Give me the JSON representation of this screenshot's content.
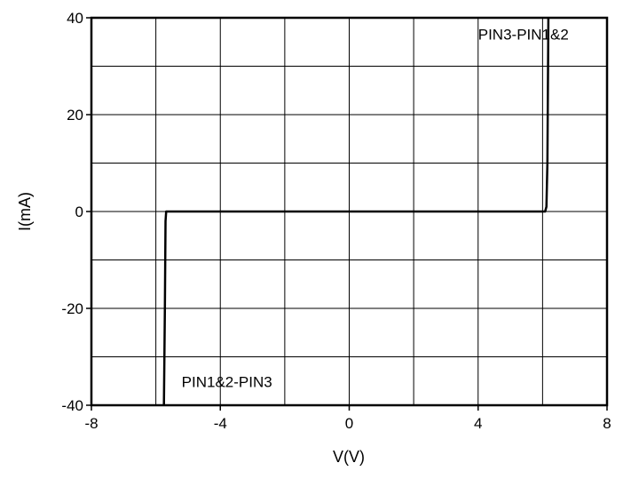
{
  "chart_data": {
    "type": "line",
    "title": "",
    "xlabel": "V(V)",
    "ylabel": "I(mA)",
    "xlim": [
      -8,
      8
    ],
    "ylim": [
      -40,
      40
    ],
    "grid": true,
    "x_ticks": [
      -8,
      -4,
      0,
      4,
      8
    ],
    "y_ticks": [
      -40,
      -20,
      0,
      20,
      40
    ],
    "x_grid_step": 2,
    "y_grid_step": 10,
    "series": [
      {
        "name": "",
        "color": "#000000",
        "points": [
          [
            -5.75,
            -40
          ],
          [
            -5.72,
            -20
          ],
          [
            -5.7,
            -2
          ],
          [
            -5.68,
            0
          ],
          [
            0,
            0
          ],
          [
            6.08,
            0
          ],
          [
            6.12,
            1
          ],
          [
            6.15,
            10
          ],
          [
            6.18,
            40
          ]
        ]
      }
    ],
    "annotations": [
      {
        "text": "PIN3-PIN1&2",
        "x": 4.0,
        "y": 35.5
      },
      {
        "text": "PIN1&2-PIN3",
        "x": -5.2,
        "y": -36.2
      }
    ]
  }
}
